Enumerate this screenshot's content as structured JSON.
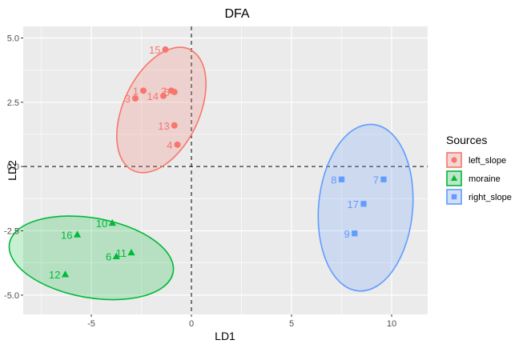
{
  "chart_data": {
    "type": "scatter",
    "title": "DFA",
    "xlabel": "LD1",
    "ylabel": "LD2",
    "xlim": [
      -8.4,
      11.8
    ],
    "ylim": [
      -5.75,
      5.45
    ],
    "x_ticks": [
      -5,
      0,
      5,
      10
    ],
    "x_tick_labels": [
      "-5",
      "0",
      "5",
      "10"
    ],
    "y_ticks": [
      -5,
      -2.5,
      0,
      2.5,
      5
    ],
    "y_tick_labels": [
      "-5.0",
      "-2.5",
      "0.0",
      "2.5",
      "5.0"
    ],
    "grid": true,
    "reference_lines": {
      "x": 0,
      "y": 0,
      "style": "dashed"
    },
    "legend": {
      "title": "Sources",
      "placement": "right"
    },
    "series": [
      {
        "name": "left_slope",
        "color": "#F8766D",
        "shape": "circle",
        "ellipse": {
          "cx": -1.5,
          "cy": 2.2,
          "rx": 1.9,
          "ry": 2.6,
          "angle_deg": 25
        },
        "points": [
          {
            "label": "15",
            "x": -1.3,
            "y": 4.55
          },
          {
            "label": "1",
            "x": -2.4,
            "y": 2.95
          },
          {
            "label": "2",
            "x": -1.0,
            "y": 2.95
          },
          {
            "label": "5",
            "x": -0.85,
            "y": 2.9
          },
          {
            "label": "14",
            "x": -1.4,
            "y": 2.75
          },
          {
            "label": "3",
            "x": -2.8,
            "y": 2.65
          },
          {
            "label": "13",
            "x": -0.85,
            "y": 1.6
          },
          {
            "label": "4",
            "x": -0.7,
            "y": 0.85
          }
        ]
      },
      {
        "name": "moraine",
        "color": "#00BA38",
        "shape": "triangle",
        "ellipse": {
          "cx": -5.0,
          "cy": -3.55,
          "rx": 4.15,
          "ry": 1.55,
          "angle_deg": 10
        },
        "points": [
          {
            "label": "10",
            "x": -3.95,
            "y": -2.2
          },
          {
            "label": "16",
            "x": -5.7,
            "y": -2.65
          },
          {
            "label": "11",
            "x": -3.0,
            "y": -3.35
          },
          {
            "label": "6",
            "x": -3.75,
            "y": -3.5
          },
          {
            "label": "12",
            "x": -6.3,
            "y": -4.2
          }
        ]
      },
      {
        "name": "right_slope",
        "color": "#619CFF",
        "shape": "square",
        "ellipse": {
          "cx": 8.7,
          "cy": -1.6,
          "rx": 2.35,
          "ry": 3.25,
          "angle_deg": 5
        },
        "points": [
          {
            "label": "8",
            "x": 7.5,
            "y": -0.5
          },
          {
            "label": "7",
            "x": 9.6,
            "y": -0.5
          },
          {
            "label": "17",
            "x": 8.6,
            "y": -1.45
          },
          {
            "label": "9",
            "x": 8.15,
            "y": -2.6
          }
        ]
      }
    ]
  }
}
